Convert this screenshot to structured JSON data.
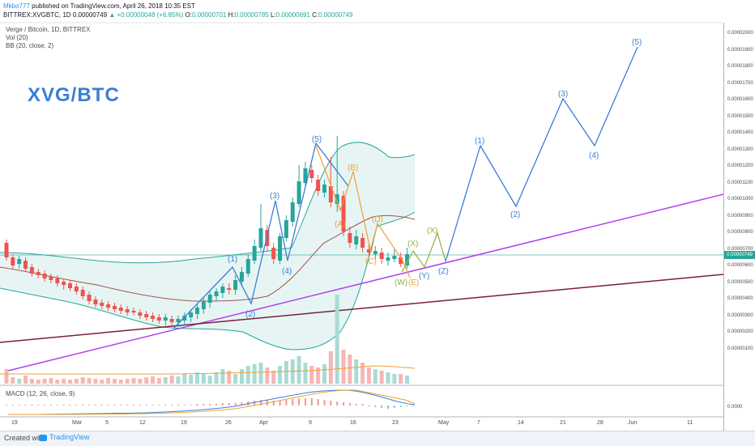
{
  "header": {
    "author": "Mkbo777",
    "published": " published on TradingView.com, April 26, 2018 10:35 EST",
    "symbol": "BITTREX:XVGBTC, 1D",
    "last": "0.00000749",
    "change_arrow": "▲",
    "change": "+0.00000048 (+6.85%)",
    "ohlc_o_label": "O:",
    "ohlc_o": "0.00000701",
    "ohlc_h_label": "H:",
    "ohlc_h": "0.00000785",
    "ohlc_l_label": "L:",
    "ohlc_l": "0.00000691",
    "ohlc_c_label": "C:",
    "ohlc_c": "0.00000749"
  },
  "indicators": {
    "name": "Verge / Bitcoin, 1D, BITTREX",
    "vol": "Vol (20)",
    "bb": "BB (20, close, 2)"
  },
  "pair_title": "XVG/BTC",
  "price_axis": {
    "labels": [
      "0.00002000",
      "0.00001900",
      "0.00001800",
      "0.00001700",
      "0.00001600",
      "0.00001500",
      "0.00001400",
      "0.00001300",
      "0.00001200",
      "0.00001100",
      "0.00001000",
      "0.00000900",
      "0.00000800",
      "0.00000700",
      "0.00000600",
      "0.00000500",
      "0.00000400",
      "0.00000300",
      "0.00000200",
      "0.00000100"
    ],
    "last_badge": "0.00000749"
  },
  "macd": {
    "label": "MACD (12, 26, close, 9)",
    "zero_label": "0.0000"
  },
  "time_axis": {
    "labels": [
      "19",
      "Mar",
      "5",
      "12",
      "19",
      "26",
      "Apr",
      "9",
      "16",
      "23",
      "May",
      "7",
      "14",
      "21",
      "28",
      "Jun",
      "11"
    ]
  },
  "waves": {
    "impulse_main": [
      "(1)",
      "(2)",
      "(3)",
      "(4)",
      "(5)"
    ],
    "corrective": [
      "(A)",
      "(B)",
      "(C)",
      "(D)",
      "(E)"
    ],
    "wxy": [
      "(W)",
      "(X)",
      "(Y)",
      "(X)",
      "(Z)"
    ],
    "future": [
      "(1)",
      "(2)",
      "(3)",
      "(4)",
      "(5)"
    ]
  },
  "colors": {
    "up": "#26a69a",
    "down": "#ef5350",
    "wave_blue": "#3b7dd8",
    "wave_orange": "#f0a030",
    "wave_green": "#8fb04a",
    "trend_purple": "#b040f0",
    "trend_maroon": "#7a1f3a",
    "bb_line": "#26a69a",
    "bb_fill": "#e6f5f3",
    "ma_line": "#a0524f"
  },
  "footer": {
    "created": "Created with",
    "brand": "TradingView"
  }
}
